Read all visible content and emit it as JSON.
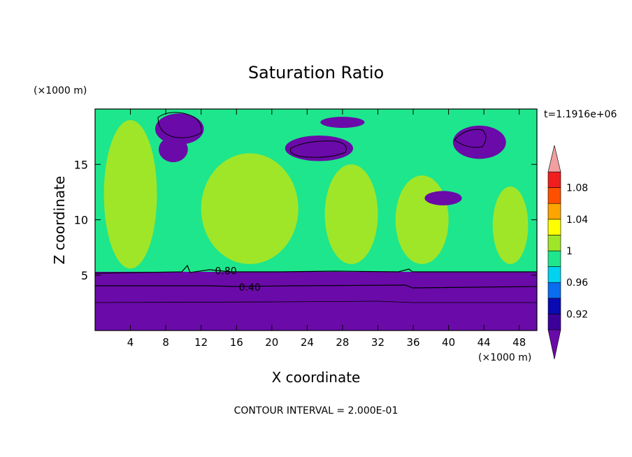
{
  "chart_data": {
    "type": "heatmap",
    "title": "Saturation Ratio",
    "xlabel": "X coordinate",
    "ylabel": "Z coordinate",
    "x_units": "(×1000 m)",
    "z_units": "(×1000 m)",
    "time_label": "t=1.1916e+06",
    "footer": "CONTOUR INTERVAL = 2.000E-01",
    "xlim": [
      0,
      50
    ],
    "ylim": [
      0,
      20
    ],
    "x_ticks": [
      "4",
      "8",
      "12",
      "16",
      "20",
      "24",
      "28",
      "32",
      "36",
      "40",
      "44",
      "48"
    ],
    "y_ticks": [
      "5",
      "10",
      "15"
    ],
    "colorbar": {
      "tick_labels": [
        "0.92",
        "0.96",
        "1",
        "1.04",
        "1.08"
      ],
      "bins": [
        {
          "lo": 0.9,
          "hi": 0.92,
          "color": "#3b009b"
        },
        {
          "lo": 0.92,
          "hi": 0.94,
          "color": "#0a0ab4"
        },
        {
          "lo": 0.94,
          "hi": 0.96,
          "color": "#0a6cf0"
        },
        {
          "lo": 0.96,
          "hi": 0.98,
          "color": "#00d2f0"
        },
        {
          "lo": 0.98,
          "hi": 1.0,
          "color": "#1ee68c"
        },
        {
          "lo": 1.0,
          "hi": 1.02,
          "color": "#a0e628"
        },
        {
          "lo": 1.02,
          "hi": 1.04,
          "color": "#ffff00"
        },
        {
          "lo": 1.04,
          "hi": 1.06,
          "color": "#ffa500"
        },
        {
          "lo": 1.06,
          "hi": 1.08,
          "color": "#ff5000"
        },
        {
          "lo": 1.08,
          "hi": 1.1,
          "color": "#f01e1e"
        }
      ],
      "under_color": "#6a0aa8",
      "over_color": "#f0a0a0"
    },
    "contour_labels": [
      {
        "text": "0.80",
        "x": 14.8,
        "z": 5.4
      },
      {
        "text": "0.40",
        "x": 17.5,
        "z": 3.9
      }
    ],
    "regions": [
      {
        "desc": "dry lower layer",
        "color": "#6a0aa8",
        "x0": 0,
        "x1": 50,
        "z0": 0,
        "z1": 5.3
      },
      {
        "desc": "mid troposphere",
        "color": "#1ee68c",
        "x0": 0,
        "x1": 50,
        "z0": 5.3,
        "z1": 20
      },
      {
        "desc": "supersaturated band",
        "color": "#a0e628",
        "x0": 1,
        "x1": 7,
        "z0": 5.6,
        "z1": 19
      },
      {
        "desc": "supersaturated band",
        "color": "#a0e628",
        "x0": 12,
        "x1": 23,
        "z0": 6,
        "z1": 16
      },
      {
        "desc": "supersaturated band",
        "color": "#a0e628",
        "x0": 26,
        "x1": 32,
        "z0": 6,
        "z1": 15
      },
      {
        "desc": "supersaturated band",
        "color": "#a0e628",
        "x0": 34,
        "x1": 40,
        "z0": 6,
        "z1": 14
      },
      {
        "desc": "supersaturated band",
        "color": "#a0e628",
        "x0": 45,
        "x1": 49,
        "z0": 6,
        "z1": 13
      },
      {
        "desc": "dry patch",
        "color": "#6a0aa8",
        "x0": 6.8,
        "x1": 12.3,
        "z0": 16.8,
        "z1": 19.6
      },
      {
        "desc": "dry patch",
        "color": "#6a0aa8",
        "x0": 7.2,
        "x1": 10.5,
        "z0": 15.2,
        "z1": 17.5
      },
      {
        "desc": "dry patch",
        "color": "#6a0aa8",
        "x0": 21.5,
        "x1": 29.2,
        "z0": 15.3,
        "z1": 17.6
      },
      {
        "desc": "dry patch",
        "color": "#6a0aa8",
        "x0": 25.5,
        "x1": 30.5,
        "z0": 18.3,
        "z1": 19.3
      },
      {
        "desc": "dry patch",
        "color": "#6a0aa8",
        "x0": 40.5,
        "x1": 46.5,
        "z0": 15.5,
        "z1": 18.5
      },
      {
        "desc": "dry patch",
        "color": "#6a0aa8",
        "x0": 37.3,
        "x1": 41.5,
        "z0": 11.3,
        "z1": 12.6
      }
    ]
  }
}
